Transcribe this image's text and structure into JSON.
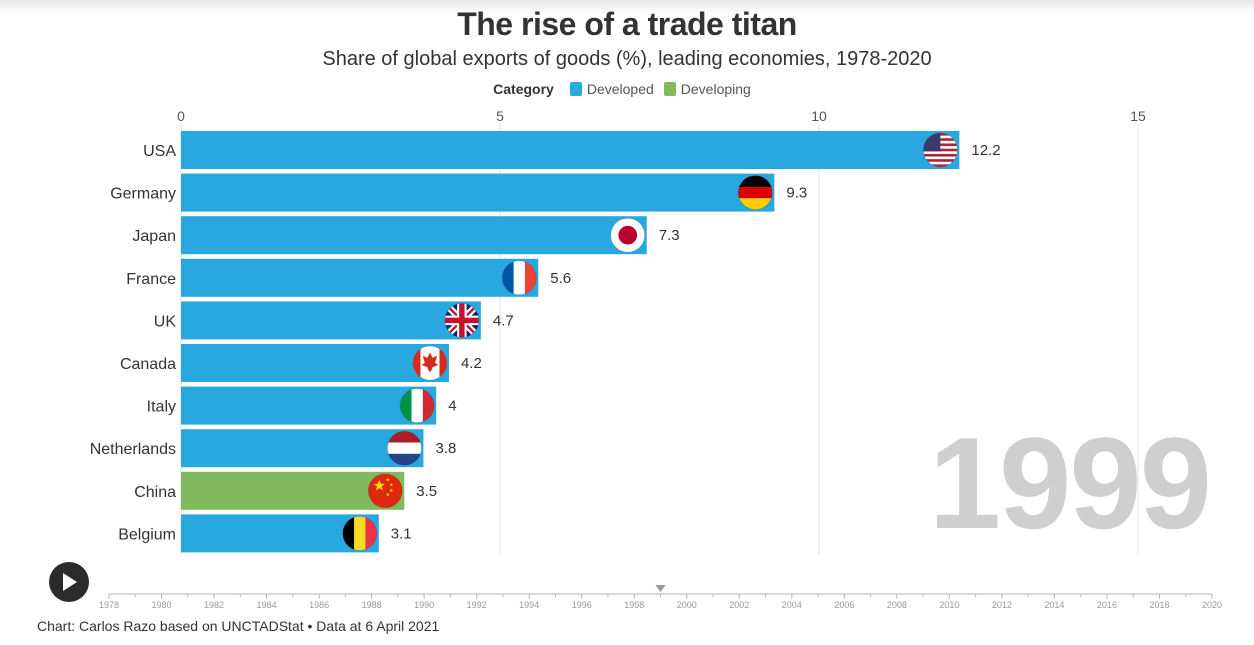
{
  "title": "The rise of a trade titan",
  "subtitle": "Share of global exports of goods (%), leading economies, 1978-2020",
  "legend": {
    "title": "Category",
    "items": [
      {
        "label": "Developed",
        "color": "#29a7df"
      },
      {
        "label": "Developing",
        "color": "#82b95f"
      }
    ]
  },
  "year": "1999",
  "play_icon": "play-icon",
  "footer": "Chart: Carlos Razo based on UNCTADStat • Data at 6 April 2021",
  "chart_data": {
    "type": "bar",
    "orientation": "horizontal",
    "xlim": [
      0,
      15
    ],
    "xticks": [
      0,
      5,
      10,
      15
    ],
    "grid": true,
    "legend_position": "top-center",
    "categories": [
      "USA",
      "Germany",
      "Japan",
      "France",
      "UK",
      "Canada",
      "Italy",
      "Netherlands",
      "China",
      "Belgium"
    ],
    "values": [
      12.2,
      9.3,
      7.3,
      5.6,
      4.7,
      4.2,
      4,
      3.8,
      3.5,
      3.1
    ],
    "value_labels": [
      "12.2",
      "9.3",
      "7.3",
      "5.6",
      "4.7",
      "4.2",
      "4",
      "3.8",
      "3.5",
      "3.1"
    ],
    "groups": [
      "Developed",
      "Developed",
      "Developed",
      "Developed",
      "Developed",
      "Developed",
      "Developed",
      "Developed",
      "Developing",
      "Developed"
    ],
    "flags": [
      "usa-flag-icon",
      "germany-flag-icon",
      "japan-flag-icon",
      "france-flag-icon",
      "uk-flag-icon",
      "canada-flag-icon",
      "italy-flag-icon",
      "netherlands-flag-icon",
      "china-flag-icon",
      "belgium-flag-icon"
    ]
  },
  "timeline": {
    "years": [
      "1978",
      "1980",
      "1982",
      "1984",
      "1986",
      "1988",
      "1990",
      "1992",
      "1994",
      "1996",
      "1998",
      "2000",
      "2002",
      "2004",
      "2006",
      "2008",
      "2010",
      "2012",
      "2014",
      "2016",
      "2018",
      "2020"
    ],
    "start": 1978,
    "end": 2020,
    "current": 1999
  }
}
